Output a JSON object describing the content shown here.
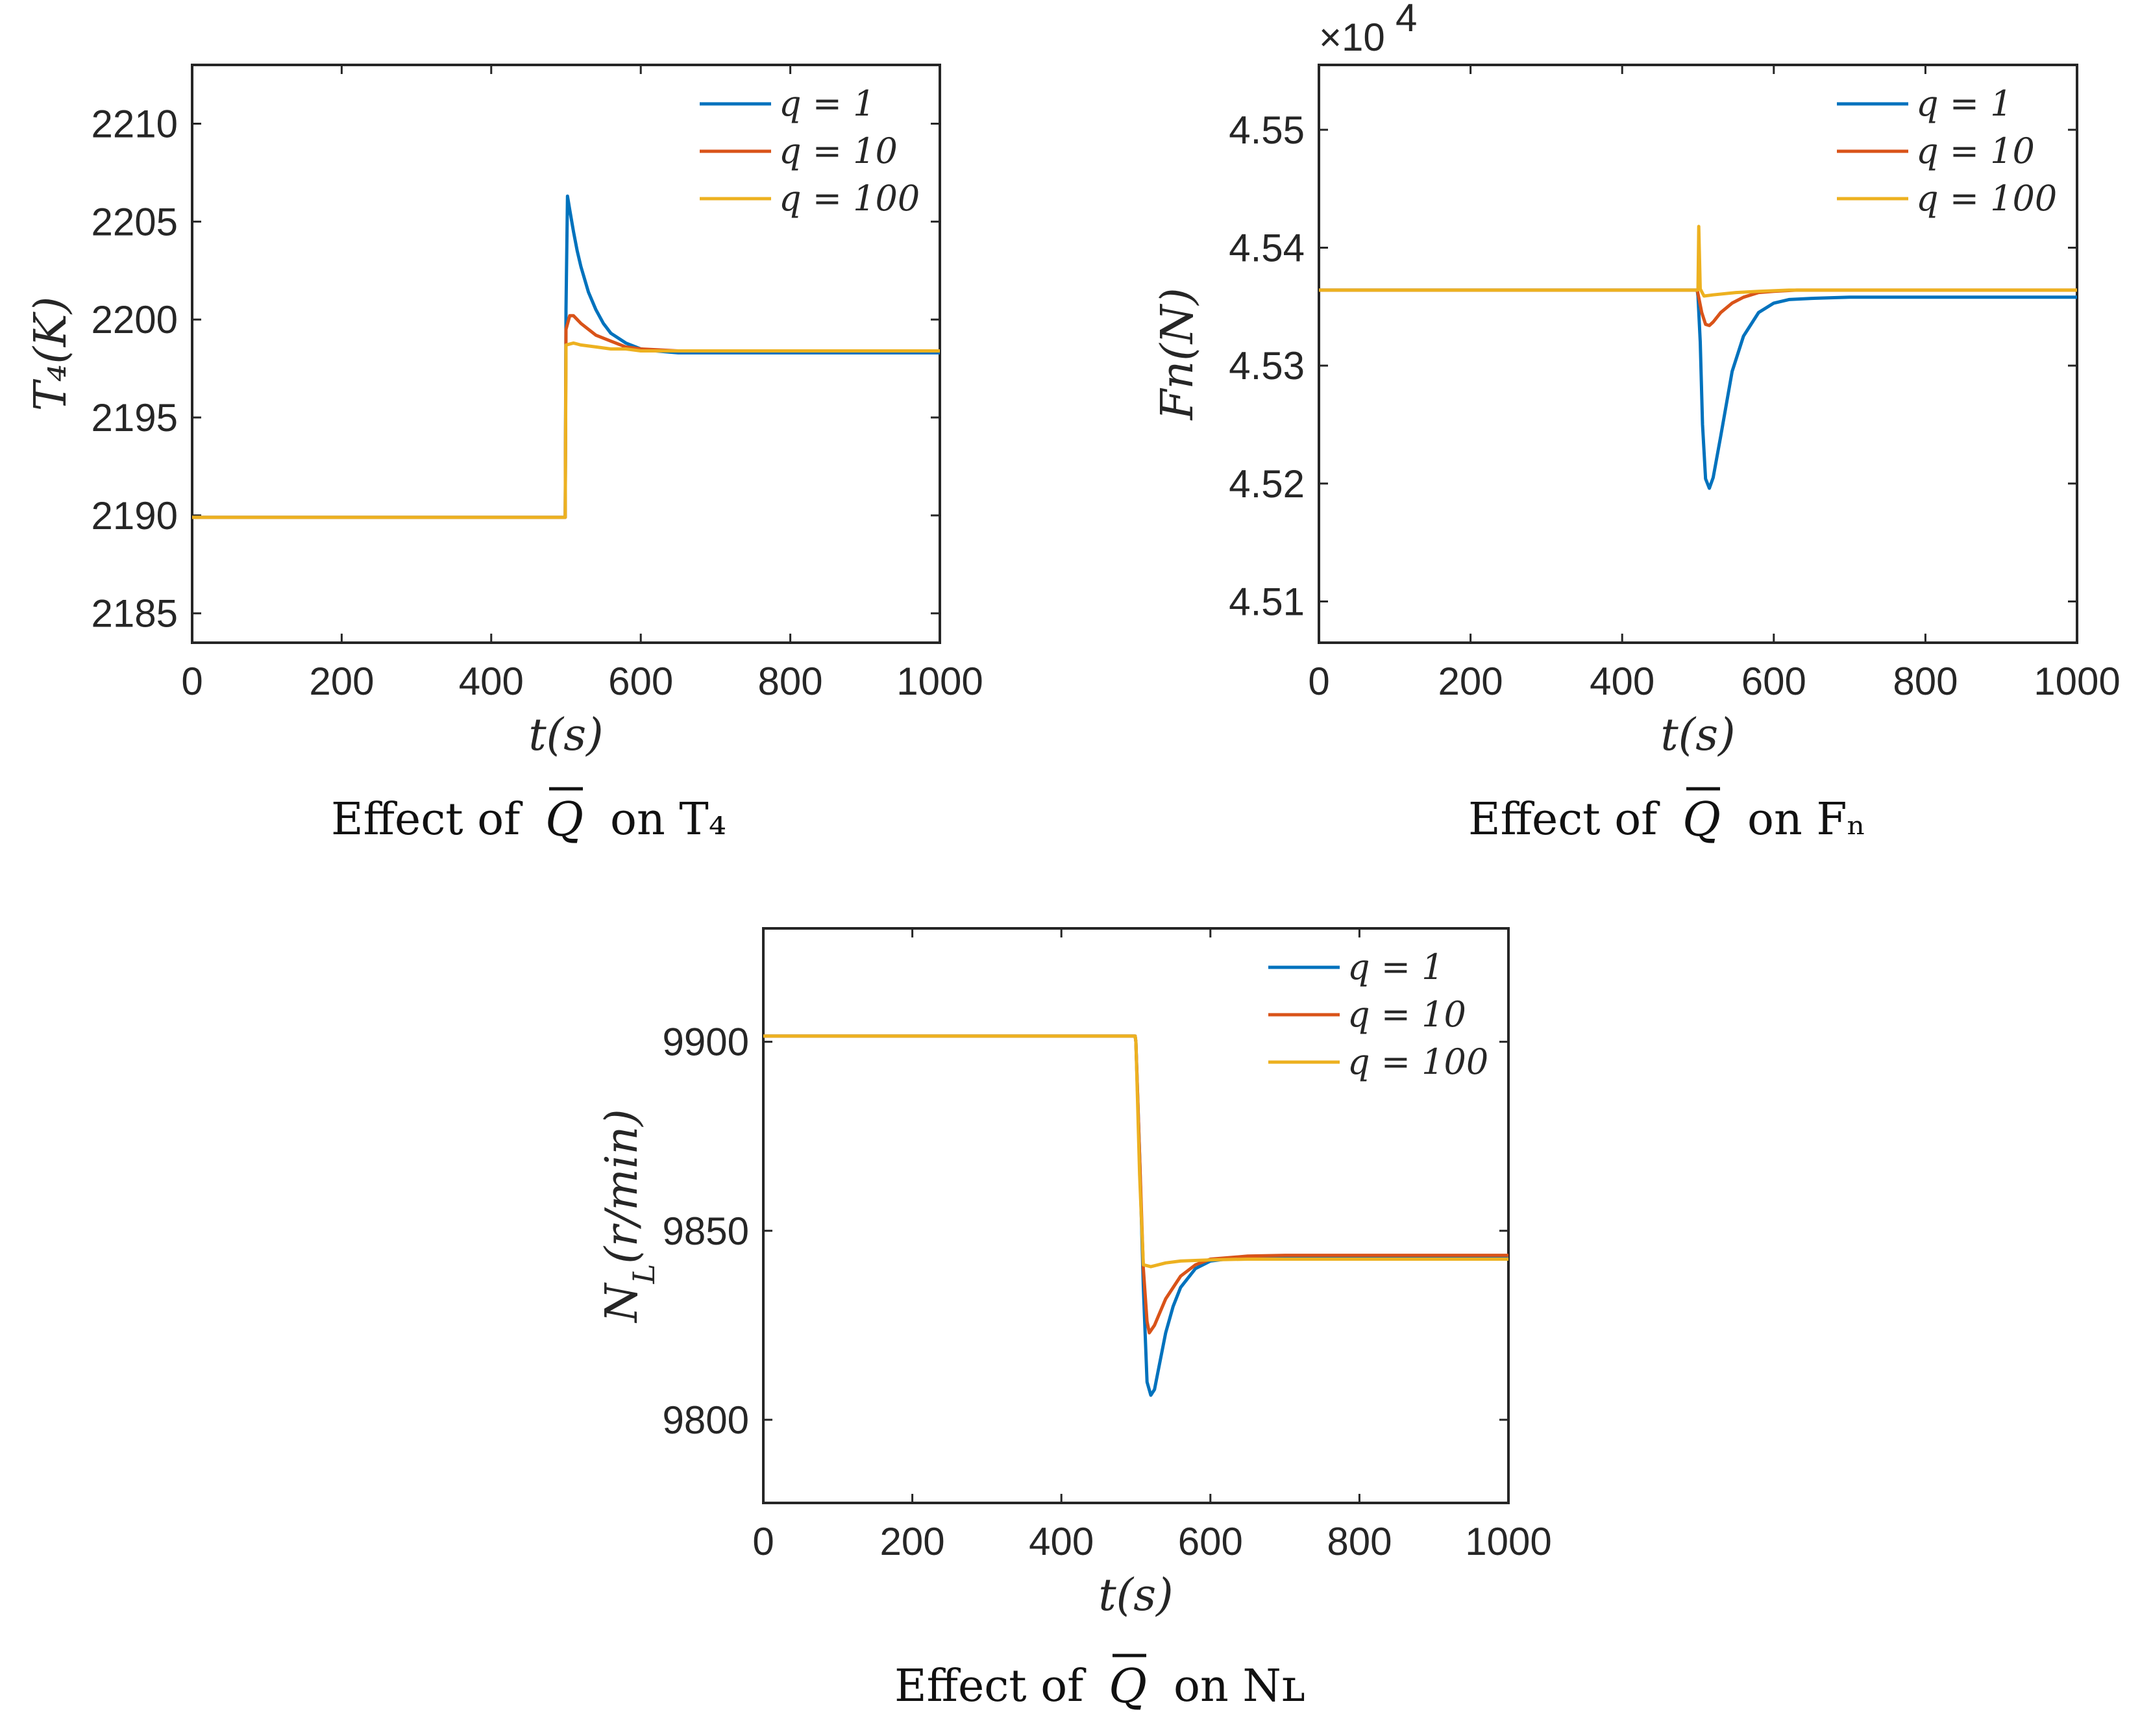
{
  "chart_data": [
    {
      "type": "line",
      "caption": "Effect of",
      "caption_symbol": "Q",
      "caption_suffix": "on T₄",
      "xlabel": "t(s)",
      "ylabel": "T₄(K)",
      "xlim": [
        0,
        1000
      ],
      "ylim": [
        2183.5,
        2213
      ],
      "xticks": [
        "0",
        "200",
        "400",
        "600",
        "800",
        "1000"
      ],
      "yticks": [
        "2185",
        "2190",
        "2195",
        "2200",
        "2205",
        "2210"
      ],
      "ytick_values": [
        2185,
        2190,
        2195,
        2200,
        2205,
        2210
      ],
      "legend": [
        "q = 1",
        "q = 10",
        "q = 100"
      ],
      "legend_position": "top-right",
      "series": [
        {
          "name": "q = 1",
          "color": "#0072BD",
          "x": [
            0,
            499,
            500,
            502,
            505,
            510,
            515,
            520,
            530,
            540,
            550,
            560,
            580,
            600,
            620,
            650,
            700,
            1000
          ],
          "y": [
            2189.9,
            2189.9,
            2200.5,
            2206.3,
            2205.6,
            2204.5,
            2203.5,
            2202.7,
            2201.4,
            2200.5,
            2199.8,
            2199.3,
            2198.8,
            2198.5,
            2198.4,
            2198.3,
            2198.3,
            2198.3
          ]
        },
        {
          "name": "q = 10",
          "color": "#D95319",
          "x": [
            0,
            499,
            500,
            505,
            510,
            515,
            520,
            530,
            540,
            560,
            580,
            600,
            650,
            700,
            1000
          ],
          "y": [
            2189.9,
            2189.9,
            2199.5,
            2200.2,
            2200.2,
            2200.0,
            2199.8,
            2199.5,
            2199.2,
            2198.9,
            2198.6,
            2198.5,
            2198.4,
            2198.4,
            2198.4
          ]
        },
        {
          "name": "q = 100",
          "color": "#EDB120",
          "x": [
            0,
            499,
            500,
            510,
            520,
            540,
            560,
            580,
            600,
            650,
            1000
          ],
          "y": [
            2189.9,
            2189.9,
            2198.7,
            2198.8,
            2198.7,
            2198.6,
            2198.5,
            2198.5,
            2198.4,
            2198.4,
            2198.4
          ]
        }
      ]
    },
    {
      "type": "line",
      "caption": "Effect of",
      "caption_symbol": "Q",
      "caption_suffix": "on Fₙ",
      "xlabel": "t(s)",
      "ylabel": "Fn(N)",
      "y_multiplier": "×10",
      "y_multiplier_exp": "4",
      "xlim": [
        0,
        1000
      ],
      "ylim": [
        4.5065,
        4.5555
      ],
      "xticks": [
        "0",
        "200",
        "400",
        "600",
        "800",
        "1000"
      ],
      "yticks": [
        "4.51",
        "4.52",
        "4.53",
        "4.54",
        "4.55"
      ],
      "ytick_values": [
        4.51,
        4.52,
        4.53,
        4.54,
        4.55
      ],
      "legend": [
        "q = 1",
        "q = 10",
        "q = 100"
      ],
      "legend_position": "top-right",
      "series": [
        {
          "name": "q = 1",
          "color": "#0072BD",
          "x": [
            0,
            499,
            500,
            503,
            506,
            510,
            515,
            520,
            530,
            545,
            560,
            580,
            600,
            620,
            650,
            700,
            800,
            1000
          ],
          "y": [
            4.5364,
            4.5364,
            4.5359,
            4.532,
            4.525,
            4.5204,
            4.5196,
            4.5205,
            4.524,
            4.5295,
            4.5325,
            4.5345,
            4.5353,
            4.5356,
            4.5357,
            4.5358,
            4.5358,
            4.5358
          ]
        },
        {
          "name": "q = 10",
          "color": "#D95319",
          "x": [
            0,
            499,
            500,
            505,
            510,
            515,
            520,
            530,
            545,
            560,
            580,
            600,
            630,
            700,
            1000
          ],
          "y": [
            4.5364,
            4.5364,
            4.5361,
            4.5345,
            4.5335,
            4.5334,
            4.5337,
            4.5345,
            4.5353,
            4.5358,
            4.5362,
            4.5363,
            4.5364,
            4.5364,
            4.5364
          ]
        },
        {
          "name": "q = 100",
          "color": "#EDB120",
          "x": [
            0,
            499,
            500,
            501,
            503,
            508,
            520,
            550,
            580,
            620,
            700,
            1000
          ],
          "y": [
            4.5364,
            4.5364,
            4.5365,
            4.5418,
            4.5365,
            4.5359,
            4.536,
            4.5362,
            4.5363,
            4.5364,
            4.5364,
            4.5364
          ]
        }
      ]
    },
    {
      "type": "line",
      "caption": "Effect of",
      "caption_symbol": "Q",
      "caption_suffix": "on Nʟ",
      "xlabel": "t(s)",
      "ylabel": "N_L(r/min)",
      "ylabel_main": "N",
      "ylabel_sub": "L",
      "ylabel_rest": "(r/min)",
      "xlim": [
        0,
        1000
      ],
      "ylim": [
        9778,
        9930
      ],
      "xticks": [
        "0",
        "200",
        "400",
        "600",
        "800",
        "1000"
      ],
      "yticks": [
        "9800",
        "9850",
        "9900"
      ],
      "ytick_values": [
        9800,
        9850,
        9900
      ],
      "legend": [
        "q = 1",
        "q = 10",
        "q = 100"
      ],
      "legend_position": "top-right",
      "series": [
        {
          "name": "q = 1",
          "color": "#0072BD",
          "x": [
            0,
            499,
            500,
            505,
            510,
            515,
            520,
            525,
            530,
            540,
            550,
            560,
            580,
            600,
            620,
            650,
            700,
            1000
          ],
          "y": [
            9901.5,
            9901.5,
            9900,
            9870,
            9835,
            9810,
            9806.5,
            9808,
            9813,
            9823,
            9830,
            9835,
            9840,
            9842,
            9842.5,
            9843,
            9843,
            9843
          ]
        },
        {
          "name": "q = 10",
          "color": "#D95319",
          "x": [
            0,
            499,
            500,
            505,
            510,
            515,
            518,
            525,
            540,
            560,
            580,
            600,
            650,
            700,
            1000
          ],
          "y": [
            9901.5,
            9901.5,
            9900,
            9870,
            9840,
            9826,
            9823,
            9825,
            9832,
            9838,
            9841,
            9842.5,
            9843.3,
            9843.5,
            9843.5
          ]
        },
        {
          "name": "q = 100",
          "color": "#EDB120",
          "x": [
            0,
            499,
            500,
            505,
            510,
            520,
            540,
            560,
            600,
            650,
            1000
          ],
          "y": [
            9901.5,
            9901.5,
            9900,
            9865,
            9841,
            9840.5,
            9841.5,
            9842,
            9842.3,
            9842.5,
            9842.5
          ]
        }
      ]
    }
  ]
}
